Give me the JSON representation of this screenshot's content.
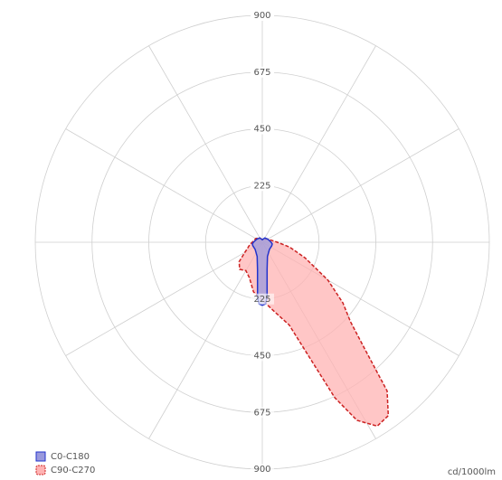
{
  "chart_data": {
    "type": "polar",
    "unit_label": "cd/1000lm",
    "rlim": [
      0,
      900
    ],
    "rticks": [
      225,
      450,
      675,
      900
    ],
    "angle_grid": [
      0,
      30,
      60,
      90,
      120,
      150,
      180,
      210,
      240,
      270,
      300,
      330
    ],
    "grid": true,
    "legend": "bottom-left",
    "series": [
      {
        "name": "C90-C270",
        "color": "#cc2222",
        "fill": "#ffb3b3",
        "dashed": true,
        "angles": [
          -180,
          -150,
          -120,
          -90,
          -80,
          -70,
          -60,
          -50,
          -40,
          -30,
          -20,
          -10,
          0,
          10,
          18,
          22,
          25,
          28,
          32,
          36,
          40,
          44,
          48,
          53,
          60,
          70,
          80,
          90,
          100,
          120,
          150,
          180
        ],
        "values": [
          10,
          20,
          30,
          40,
          50,
          60,
          80,
          120,
          140,
          130,
          150,
          200,
          230,
          280,
          345,
          480,
          680,
          800,
          860,
          850,
          770,
          580,
          470,
          400,
          300,
          180,
          110,
          60,
          40,
          25,
          15,
          10
        ]
      },
      {
        "name": "C0-C180",
        "color": "#2233cc",
        "fill": "#9999dd",
        "dashed": false,
        "angles": [
          -180,
          -150,
          -120,
          -100,
          -90,
          -80,
          -70,
          -45,
          -20,
          -10,
          -5,
          -3,
          0,
          3,
          5,
          10,
          20,
          45,
          70,
          80,
          90,
          100,
          120,
          150,
          180
        ],
        "values": [
          10,
          20,
          25,
          30,
          35,
          40,
          40,
          40,
          60,
          110,
          220,
          245,
          250,
          245,
          220,
          110,
          60,
          40,
          40,
          40,
          35,
          30,
          25,
          20,
          10
        ]
      }
    ]
  }
}
